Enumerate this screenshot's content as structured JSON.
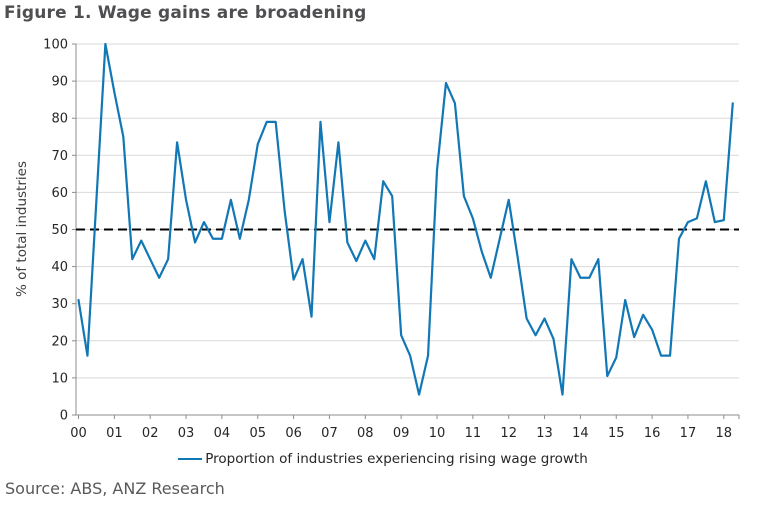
{
  "chart_data": {
    "type": "line",
    "title": "Figure 1. Wage gains are broadening",
    "xlabel": "",
    "ylabel": "% of total industries",
    "ylim": [
      0,
      100
    ],
    "ytick_interval": 10,
    "y_tick_labels": [
      "0",
      "10",
      "20",
      "30",
      "40",
      "50",
      "60",
      "70",
      "80",
      "90",
      "100"
    ],
    "x_tick_labels": [
      "00",
      "01",
      "02",
      "03",
      "04",
      "05",
      "06",
      "07",
      "08",
      "09",
      "10",
      "11",
      "12",
      "13",
      "14",
      "15",
      "16",
      "17",
      "18"
    ],
    "points_per_year": 4,
    "x_start": "2000 Q1",
    "grid": "horizontal",
    "legend_position": "bottom",
    "reference_line": {
      "value": 50,
      "style": "dashed",
      "color": "#000000"
    },
    "series": [
      {
        "name": "Proportion of industries experiencing rising wage growth",
        "color": "#1277b5",
        "values": [
          31,
          16,
          58,
          100,
          87,
          75,
          42,
          47,
          42,
          37,
          42,
          73.5,
          58,
          46.5,
          52,
          47.5,
          47.5,
          58,
          47.5,
          58,
          73,
          79,
          79,
          55,
          36.5,
          42,
          26.5,
          79,
          52,
          73.5,
          46.5,
          41.5,
          47,
          42,
          63,
          59,
          21.5,
          16,
          5.5,
          16,
          66,
          89.5,
          84,
          59,
          53,
          44,
          37,
          47.5,
          58,
          42.5,
          26,
          21.5,
          26,
          20.5,
          5.5,
          42,
          37,
          37,
          42,
          10.5,
          15.5,
          31,
          21,
          27,
          23,
          16,
          16,
          47.5,
          52,
          53,
          63,
          52,
          52.5,
          84
        ]
      }
    ]
  },
  "source": {
    "text": "Source: ABS, ANZ Research"
  },
  "colors": {
    "series_line": "#1277b5",
    "grid": "#d9d9d9",
    "axis": "#8c8c8c",
    "tick_text": "#262626",
    "title_text": "#4f4f52",
    "source_text": "#595959",
    "reference_line": "#000000",
    "background": "#ffffff"
  }
}
